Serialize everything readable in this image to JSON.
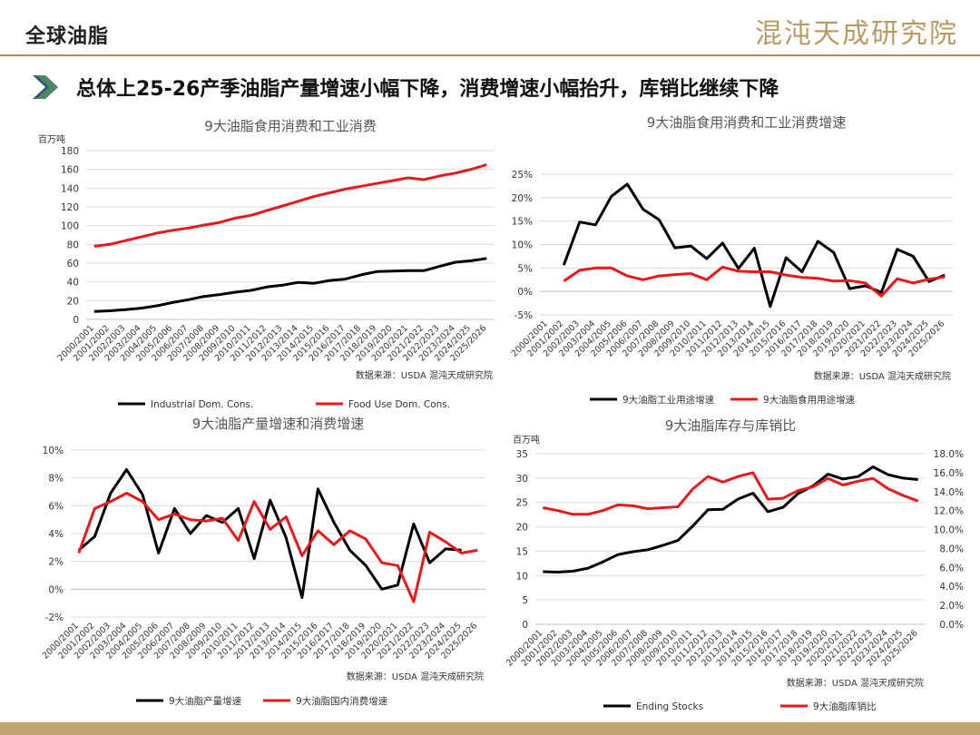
{
  "header": {
    "title": "全球油脂",
    "logo_text": "混沌天成研究院",
    "subtitle": "总体上25-26产季油脂产量增速小幅下降，消费增速小幅抬升，库销比继续下降"
  },
  "colors": {
    "black": "#000000",
    "red": "#e8191c",
    "gold": "#b08d55",
    "grid": "#d9d9d9"
  },
  "chart_data": [
    {
      "type": "line",
      "title": "9大油脂食用消费和工业消费",
      "unit_label": "百万吨",
      "source": "数据来源：USDA  混沌天成研究院",
      "x": [
        "2000/2001",
        "2001/2002",
        "2002/2003",
        "2003/2004",
        "2004/2005",
        "2005/2006",
        "2006/2007",
        "2007/2008",
        "2008/2009",
        "2009/2010",
        "2010/2011",
        "2011/2012",
        "2012/2013",
        "2013/2014",
        "2014/2015",
        "2015/2016",
        "2016/2017",
        "2017/2018",
        "2018/2019",
        "2019/2020",
        "2020/2021",
        "2021/2022",
        "2022/2023",
        "2023/2024",
        "2024/2025",
        "2025/2026"
      ],
      "ylim": [
        0,
        180
      ],
      "yticks": [
        0,
        20,
        40,
        60,
        80,
        100,
        120,
        140,
        160,
        180
      ],
      "ytick_labels": [
        "0",
        "20",
        "40",
        "60",
        "80",
        "100",
        "120",
        "140",
        "160",
        "180"
      ],
      "grid": true,
      "legend_position": "bottom",
      "series": [
        {
          "name": "Industrial Dom. Cons.",
          "color": "#000000",
          "axis": "left",
          "values": [
            8.5,
            9.2,
            10.5,
            12,
            14.5,
            18,
            21,
            24.5,
            26.5,
            29,
            31,
            34.5,
            36.5,
            39.5,
            38.5,
            41.5,
            43,
            47.5,
            51,
            51.5,
            52,
            52,
            56.5,
            61,
            62.5,
            65
          ]
        },
        {
          "name": "Food Use Dom. Cons.",
          "color": "#e8191c",
          "axis": "left",
          "values": [
            78,
            80,
            84,
            88,
            92,
            95,
            97.5,
            100.5,
            103.5,
            108,
            111,
            116,
            121,
            126,
            131,
            135,
            139,
            142,
            145,
            148,
            151,
            149,
            153,
            156,
            160,
            165
          ]
        }
      ]
    },
    {
      "type": "line",
      "title": "9大油脂食用消费和工业消费增速",
      "unit_label": "",
      "source": "数据来源：USDA  混沌天成研究院",
      "x": [
        "2000/2001",
        "2001/2002",
        "2002/2003",
        "2003/2004",
        "2004/2005",
        "2005/2006",
        "2006/2007",
        "2007/2008",
        "2008/2009",
        "2009/2010",
        "2010/2011",
        "2011/2012",
        "2012/2013",
        "2013/2014",
        "2014/2015",
        "2015/2016",
        "2016/2017",
        "2017/2018",
        "2018/2019",
        "2019/2020",
        "2020/2021",
        "2021/2022",
        "2022/2023",
        "2023/2024",
        "2024/2025",
        "2025/2026"
      ],
      "ylim": [
        -5,
        25
      ],
      "yticks": [
        -5,
        0,
        5,
        10,
        15,
        20,
        25
      ],
      "ytick_labels": [
        "-5%",
        "0%",
        "5%",
        "10%",
        "15%",
        "20%",
        "25%"
      ],
      "grid": true,
      "legend_position": "bottom",
      "series": [
        {
          "name": "9大油脂工业用途增速",
          "color": "#000000",
          "axis": "left",
          "values": [
            null,
            5.6,
            14.8,
            14.2,
            20.3,
            22.9,
            17.5,
            15.3,
            9.3,
            9.7,
            7.0,
            10.3,
            4.9,
            9.2,
            -3.2,
            7.2,
            4.2,
            10.7,
            8.3,
            0.6,
            1.2,
            -0.2,
            9.0,
            7.5,
            2.1,
            3.5
          ]
        },
        {
          "name": "9大油脂食用用途增速",
          "color": "#e8191c",
          "axis": "left",
          "values": [
            null,
            2.2,
            4.5,
            5.0,
            5.0,
            3.3,
            2.5,
            3.3,
            3.6,
            3.8,
            2.5,
            5.2,
            4.3,
            4.2,
            4.2,
            3.5,
            3.0,
            2.8,
            2.2,
            2.3,
            1.8,
            -1.0,
            2.7,
            1.8,
            2.6,
            3.1
          ]
        }
      ]
    },
    {
      "type": "line",
      "title": "9大油脂产量增速和消费增速",
      "unit_label": "",
      "source": "数据来源：USDA  混沌天成研究院",
      "x": [
        "2000/2001",
        "2001/2002",
        "2002/2003",
        "2003/2004",
        "2004/2005",
        "2005/2006",
        "2006/2007",
        "2007/2008",
        "2008/2009",
        "2009/2010",
        "2010/2011",
        "2011/2012",
        "2012/2013",
        "2013/2014",
        "2014/2015",
        "2015/2016",
        "2016/2017",
        "2017/2018",
        "2018/2019",
        "2019/2020",
        "2020/2021",
        "2021/2022",
        "2022/2023",
        "2023/2024",
        "2024/2025",
        "2025/2026"
      ],
      "ylim": [
        -2,
        10
      ],
      "yticks": [
        -2,
        0,
        2,
        4,
        6,
        8,
        10
      ],
      "ytick_labels": [
        "-2%",
        "0%",
        "2%",
        "4%",
        "6%",
        "8%",
        "10%"
      ],
      "grid": true,
      "legend_position": "bottom",
      "series": [
        {
          "name": "9大油脂产量增速",
          "color": "#000000",
          "axis": "left",
          "values": [
            2.8,
            3.8,
            6.9,
            8.6,
            6.8,
            2.6,
            5.8,
            4.0,
            5.3,
            4.8,
            5.8,
            2.2,
            6.4,
            3.7,
            -0.6,
            7.2,
            4.8,
            2.8,
            1.7,
            0.0,
            0.3,
            4.7,
            1.9,
            2.9,
            2.8,
            null
          ]
        },
        {
          "name": "9大油脂国内消费增速",
          "color": "#e8191c",
          "axis": "left",
          "values": [
            2.6,
            5.8,
            6.3,
            6.9,
            6.3,
            5.0,
            5.4,
            5.0,
            4.9,
            5.1,
            3.5,
            6.3,
            4.3,
            5.2,
            2.4,
            4.2,
            3.2,
            4.2,
            3.6,
            1.9,
            1.7,
            -0.9,
            4.1,
            3.4,
            2.6,
            2.8
          ]
        }
      ]
    },
    {
      "type": "line",
      "title": "9大油脂库存与库销比",
      "unit_label": "百万吨",
      "source": "数据来源：USDA  混沌天成研究院",
      "x": [
        "2000/2001",
        "2001/2002",
        "2002/2003",
        "2003/2004",
        "2004/2005",
        "2005/2006",
        "2006/2007",
        "2007/2008",
        "2008/2009",
        "2009/2010",
        "2010/2011",
        "2011/2012",
        "2012/2013",
        "2013/2014",
        "2014/2015",
        "2015/2016",
        "2016/2017",
        "2017/2018",
        "2018/2019",
        "2019/2020",
        "2020/2021",
        "2021/2022",
        "2022/2023",
        "2023/2024",
        "2024/2025",
        "2025/2026"
      ],
      "ylim": [
        0,
        35
      ],
      "yticks": [
        0,
        5,
        10,
        15,
        20,
        25,
        30,
        35
      ],
      "ytick_labels": [
        "0",
        "5",
        "10",
        "15",
        "20",
        "25",
        "30",
        "35"
      ],
      "y2lim": [
        0,
        18
      ],
      "y2ticks": [
        0,
        2,
        4,
        6,
        8,
        10,
        12,
        14,
        16,
        18
      ],
      "y2tick_labels": [
        "0.0%",
        "2.0%",
        "4.0%",
        "6.0%",
        "8.0%",
        "10.0%",
        "12.0%",
        "14.0%",
        "16.0%",
        "18.0%"
      ],
      "grid": true,
      "legend_position": "bottom",
      "series": [
        {
          "name": "Ending Stocks",
          "color": "#000000",
          "axis": "left",
          "values": [
            10.8,
            10.7,
            10.9,
            11.5,
            12.8,
            14.3,
            14.9,
            15.3,
            16.2,
            17.2,
            20.2,
            23.5,
            23.6,
            25.7,
            26.9,
            23.1,
            24.0,
            26.8,
            28.4,
            30.8,
            29.8,
            30.3,
            32.3,
            30.7,
            30.0,
            29.7
          ]
        },
        {
          "name": "9大油脂库销比",
          "color": "#e8191c",
          "axis": "right",
          "values": [
            12.3,
            12.0,
            11.6,
            11.6,
            12.0,
            12.6,
            12.5,
            12.2,
            12.3,
            12.4,
            14.3,
            15.6,
            15.0,
            15.6,
            16.0,
            13.2,
            13.3,
            14.1,
            14.5,
            15.4,
            14.7,
            15.1,
            15.4,
            14.3,
            13.6,
            13.0
          ]
        }
      ]
    }
  ]
}
